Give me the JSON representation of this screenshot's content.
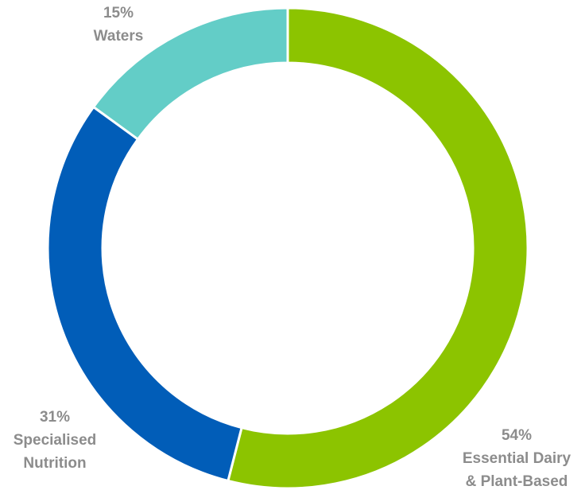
{
  "chart_data": {
    "type": "pie",
    "variant": "donut",
    "title": "",
    "legend": "none",
    "slices": [
      {
        "value": 54,
        "percent_label": "54%",
        "label_lines": [
          "Essential Dairy",
          "& Plant-Based"
        ],
        "color": "#8cc400"
      },
      {
        "value": 31,
        "percent_label": "31%",
        "label_lines": [
          "Specialised",
          "Nutrition"
        ],
        "color": "#015db8"
      },
      {
        "value": 15,
        "percent_label": "15%",
        "label_lines": [
          "Waters"
        ],
        "color": "#63cdc7"
      }
    ],
    "separator_color": "#ffffff",
    "label_color": "#8c8c8c"
  }
}
